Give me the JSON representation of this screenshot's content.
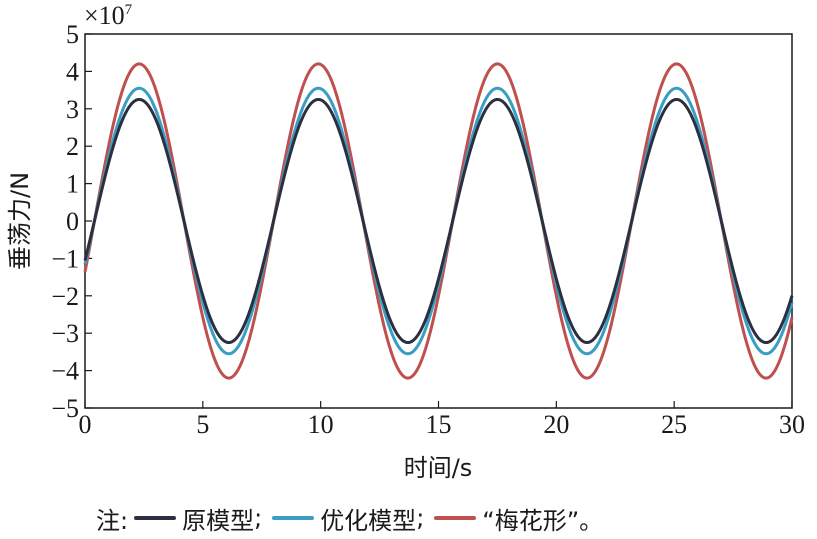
{
  "chart_data": {
    "type": "line",
    "xlabel": "时间/s",
    "ylabel": "垂荡力/N",
    "y_multiplier": "×10",
    "y_multiplier_exp": "7",
    "xlim": [
      0,
      30
    ],
    "ylim": [
      -5,
      5
    ],
    "xticks": [
      0,
      5,
      10,
      15,
      20,
      25,
      30
    ],
    "yticks": [
      -5,
      -4,
      -3,
      -2,
      -1,
      0,
      1,
      2,
      3,
      4,
      5
    ],
    "period": 7.6,
    "phase_shift": 0.4,
    "grid": false,
    "legend_position": "bottom",
    "series": [
      {
        "name": "原模型",
        "color": "#2b3040",
        "amplitude": 3.25
      },
      {
        "name": "优化模型",
        "color": "#3a9ec4",
        "amplitude": 3.55
      },
      {
        "name": "“梅花形”",
        "color": "#c0504d",
        "amplitude": 4.2
      }
    ]
  },
  "legend": {
    "prefix": "注:",
    "sep1": ";",
    "sep2": ";",
    "suffix": "。"
  }
}
